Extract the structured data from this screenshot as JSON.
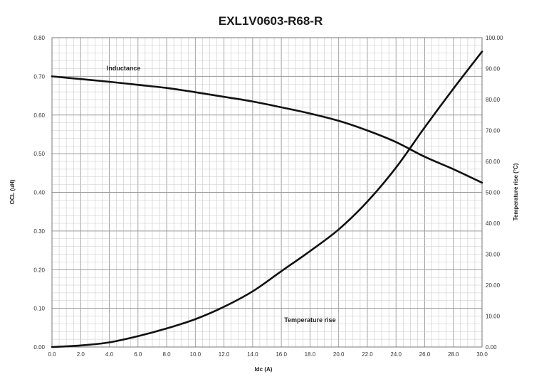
{
  "chart_data": {
    "type": "line",
    "title": "EXL1V0603-R68-R",
    "xlabel": "Idc (A)",
    "ylabel": "OCL (uH)",
    "y2label": "Temperature rise (°C)",
    "xlim": [
      0,
      30
    ],
    "ylim": [
      0,
      0.8
    ],
    "y2lim": [
      0,
      100
    ],
    "x_ticks": [
      "0.0",
      "2.0",
      "4.0",
      "6.0",
      "8.0",
      "10.0",
      "12.0",
      "14.0",
      "16.0",
      "18.0",
      "20.0",
      "22.0",
      "24.0",
      "26.0",
      "28.0",
      "30.0"
    ],
    "y_ticks": [
      "0.00",
      "0.10",
      "0.20",
      "0.30",
      "0.40",
      "0.50",
      "0.60",
      "0.70",
      "0.80"
    ],
    "y2_ticks": [
      "0.00",
      "10.00",
      "20.00",
      "30.00",
      "40.00",
      "50.00",
      "60.00",
      "70.00",
      "80.00",
      "90.00",
      "100.00"
    ],
    "grid": true,
    "series": [
      {
        "name": "Inductance",
        "axis": "left",
        "x": [
          0,
          2,
          4,
          6,
          8,
          10,
          12,
          14,
          16,
          18,
          20,
          22,
          24,
          26,
          28,
          30
        ],
        "y": [
          0.7,
          0.693,
          0.686,
          0.678,
          0.67,
          0.659,
          0.647,
          0.635,
          0.62,
          0.604,
          0.585,
          0.56,
          0.53,
          0.492,
          0.46,
          0.425
        ]
      },
      {
        "name": "Temperature rise",
        "axis": "right",
        "x": [
          0,
          2,
          4,
          6,
          8,
          10,
          12,
          14,
          16,
          18,
          20,
          22,
          24,
          26,
          28,
          30
        ],
        "y": [
          0.0,
          0.5,
          1.5,
          3.5,
          6.0,
          9.0,
          13.0,
          18.0,
          24.5,
          31.0,
          38.0,
          47.0,
          58.0,
          71.0,
          83.5,
          95.5
        ]
      }
    ],
    "annotations": [
      {
        "text": "Inductance",
        "x": 5.0,
        "y": 0.715,
        "axis": "left"
      },
      {
        "text": "Temperature rise",
        "x": 18.0,
        "y": 8.0,
        "axis": "right"
      }
    ]
  }
}
